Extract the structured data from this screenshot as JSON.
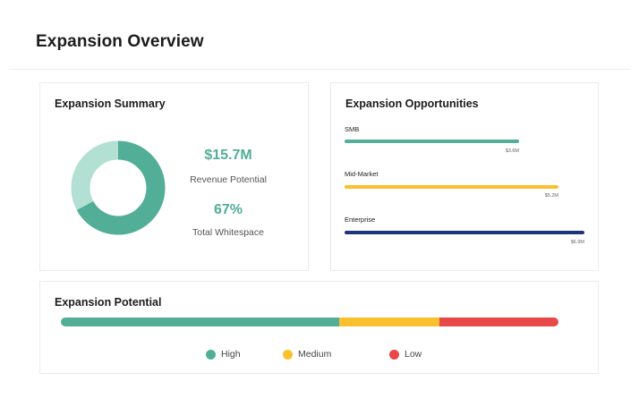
{
  "page": {
    "title": "Expansion Overview"
  },
  "summary": {
    "title": "Expansion Summary",
    "revenue_value": "$15.7M",
    "revenue_label": "Revenue Potential",
    "whitespace_value": "67%",
    "whitespace_label": "Total Whitespace",
    "donut_fraction": 0.67,
    "donut_colors": {
      "filled": "#52ae97",
      "rest": "#b2e0d3"
    }
  },
  "opportunities": {
    "title": "Expansion Opportunities",
    "items": [
      {
        "label": "SMB",
        "value_text": "$3.6M",
        "color": "#52ae97"
      },
      {
        "label": "Mid-Market",
        "value_text": "$5.2M",
        "color": "#fbc02d"
      },
      {
        "label": "Enterprise",
        "value_text": "$6.9M",
        "color": "#1f3579"
      }
    ]
  },
  "potential": {
    "title": "Expansion Potential",
    "segments": [
      {
        "name": "High",
        "share": 0.56,
        "color": "#52ae97"
      },
      {
        "name": "Medium",
        "share": 0.2,
        "color": "#fbc02d"
      },
      {
        "name": "Low",
        "share": 0.24,
        "color": "#e84848"
      }
    ]
  }
}
